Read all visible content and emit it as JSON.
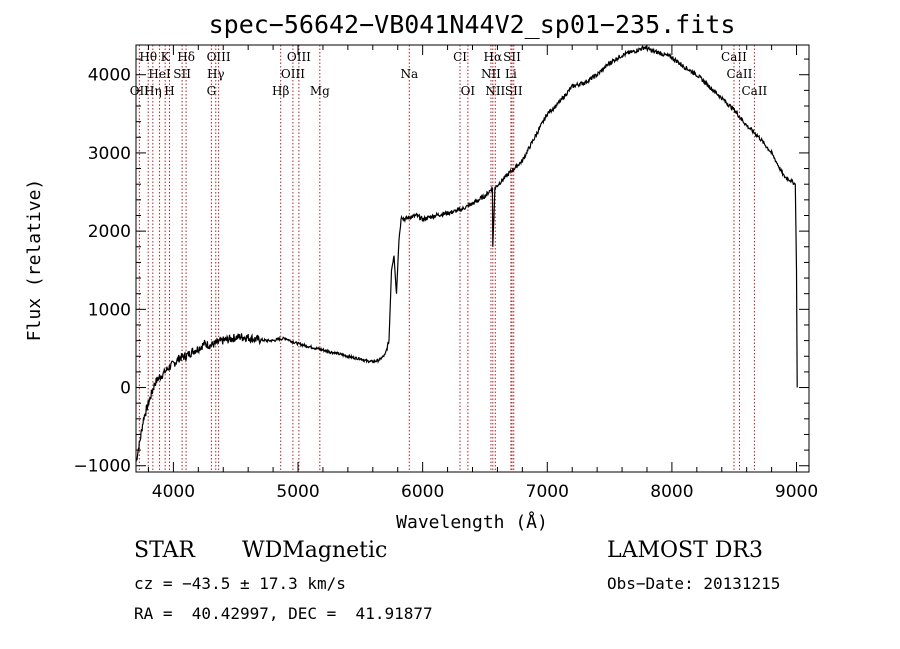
{
  "chart_data": {
    "type": "line",
    "title": "spec−56642−VB041N44V2_sp01−235.fits",
    "xlabel": "Wavelength (Å)",
    "ylabel": "Flux (relative)",
    "xlim": [
      3700,
      9100
    ],
    "ylim": [
      -1080,
      4380
    ],
    "xticks": [
      4000,
      5000,
      6000,
      7000,
      8000,
      9000
    ],
    "yticks": [
      -1000,
      0,
      1000,
      2000,
      3000,
      4000
    ],
    "ytick_labels": [
      "−1000",
      "0",
      "1000",
      "2000",
      "3000",
      "4000"
    ],
    "series": [
      {
        "x": [
          3700,
          3730,
          3760,
          3790,
          3820,
          3850,
          3880,
          3920,
          3960,
          4000,
          4050,
          4100,
          4150,
          4200,
          4250,
          4300,
          4350,
          4400,
          4450,
          4500,
          4550,
          4600,
          4650,
          4700,
          4750,
          4800,
          4850,
          4900,
          4950,
          5000,
          5050,
          5100,
          5150,
          5200,
          5250,
          5300,
          5350,
          5400,
          5450,
          5500,
          5550,
          5600,
          5650,
          5700,
          5730,
          5750,
          5770,
          5790,
          5810,
          5830,
          5850,
          5900,
          5950,
          6000,
          6100,
          6200,
          6300,
          6400,
          6500,
          6560,
          6563,
          6580,
          6620,
          6700,
          6800,
          6900,
          7000,
          7100,
          7200,
          7300,
          7400,
          7500,
          7600,
          7700,
          7780,
          7850,
          7900,
          8000,
          8100,
          8200,
          8300,
          8400,
          8500,
          8550,
          8600,
          8700,
          8800,
          8850,
          8900,
          8950,
          8990,
          9000,
          9005
        ],
        "y": [
          -950,
          -700,
          -400,
          -250,
          -100,
          50,
          120,
          180,
          250,
          300,
          380,
          400,
          460,
          500,
          560,
          540,
          570,
          600,
          620,
          640,
          650,
          640,
          620,
          610,
          600,
          600,
          620,
          630,
          590,
          560,
          540,
          520,
          500,
          480,
          460,
          440,
          420,
          400,
          380,
          370,
          340,
          330,
          350,
          420,
          600,
          1500,
          1700,
          1200,
          1900,
          2200,
          2150,
          2180,
          2200,
          2150,
          2200,
          2230,
          2270,
          2350,
          2450,
          2550,
          1800,
          2550,
          2620,
          2750,
          2900,
          3200,
          3500,
          3650,
          3850,
          3900,
          4000,
          4150,
          4250,
          4300,
          4350,
          4300,
          4280,
          4220,
          4100,
          4000,
          3850,
          3700,
          3550,
          3450,
          3350,
          3200,
          3000,
          2850,
          2700,
          2650,
          2600,
          1500,
          0
        ]
      }
    ],
    "lines": [
      {
        "name": "Hθ",
        "x": 3798,
        "row": 1
      },
      {
        "name": "K",
        "x": 3934,
        "row": 1
      },
      {
        "name": "Hδ",
        "x": 4102,
        "row": 1
      },
      {
        "name": "OIII",
        "x": 4363,
        "row": 1
      },
      {
        "name": "OIII",
        "x": 5007,
        "row": 1
      },
      {
        "name": "CI",
        "x": 6300,
        "row": 1
      },
      {
        "name": "Hα",
        "x": 6563,
        "row": 1
      },
      {
        "name": "SII",
        "x": 6717,
        "row": 1
      },
      {
        "name": "CaII",
        "x": 8498,
        "row": 1
      },
      {
        "name": "HeI",
        "x": 3889,
        "row": 2
      },
      {
        "name": "SII",
        "x": 4070,
        "row": 2
      },
      {
        "name": "Hγ",
        "x": 4340,
        "row": 2
      },
      {
        "name": "OIII",
        "x": 4959,
        "row": 2
      },
      {
        "name": "Na",
        "x": 5893,
        "row": 2
      },
      {
        "name": "NII",
        "x": 6548,
        "row": 2
      },
      {
        "name": "Li",
        "x": 6708,
        "row": 2
      },
      {
        "name": "CaII",
        "x": 8542,
        "row": 2
      },
      {
        "name": "OII",
        "x": 3727,
        "row": 3
      },
      {
        "name": "Hη",
        "x": 3835,
        "row": 3
      },
      {
        "name": "H",
        "x": 3969,
        "row": 3
      },
      {
        "name": "G",
        "x": 4305,
        "row": 3
      },
      {
        "name": "Hβ",
        "x": 4861,
        "row": 3
      },
      {
        "name": "Mg",
        "x": 5175,
        "row": 3
      },
      {
        "name": "OI",
        "x": 6363,
        "row": 3
      },
      {
        "name": "NII",
        "x": 6583,
        "row": 3
      },
      {
        "name": "SII",
        "x": 6731,
        "row": 3
      },
      {
        "name": "CaII",
        "x": 8662,
        "row": 3
      }
    ]
  },
  "info": {
    "class": "STAR",
    "subclass": "WDMagnetic",
    "survey": "LAMOST DR3",
    "cz": "cz = −43.5 ± 17.3 km/s",
    "obsdate": "Obs−Date: 20131215",
    "radec": "RA =  40.42997, DEC =  41.91877"
  },
  "colors": {
    "spectrum": "#000000",
    "line_marker": "#b22222"
  }
}
